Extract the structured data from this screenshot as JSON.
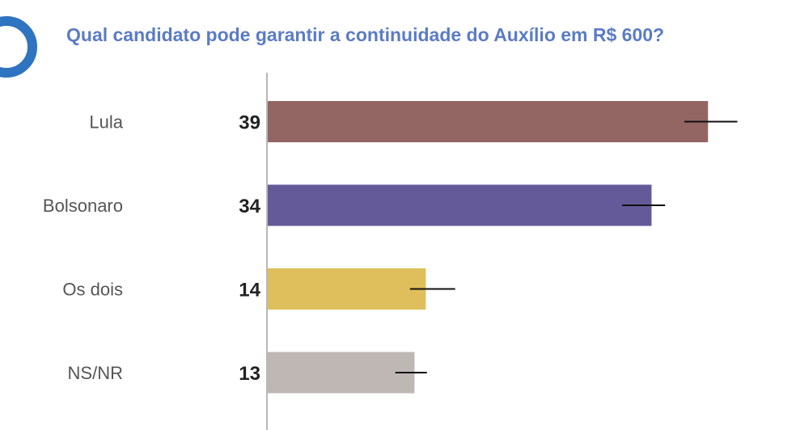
{
  "header": {
    "title": "Qual candidato pode garantir a continuidade do Auxílio em R$ 600?"
  },
  "chart_data": {
    "type": "bar",
    "orientation": "horizontal",
    "title": "Qual candidato pode garantir a continuidade do Auxílio em R$ 600?",
    "categories": [
      "Lula",
      "Bolsonaro",
      "Os dois",
      "NS/NR"
    ],
    "values": [
      39,
      34,
      14,
      13
    ],
    "error_low": [
      36.9,
      31.4,
      12.6,
      11.3
    ],
    "error_high": [
      41.6,
      35.2,
      16.6,
      14.1
    ],
    "colors": [
      "#936563",
      "#655a99",
      "#dfbf5b",
      "#bfb7b4"
    ],
    "xlim": [
      0,
      44
    ],
    "grid": false,
    "show_values": true
  }
}
